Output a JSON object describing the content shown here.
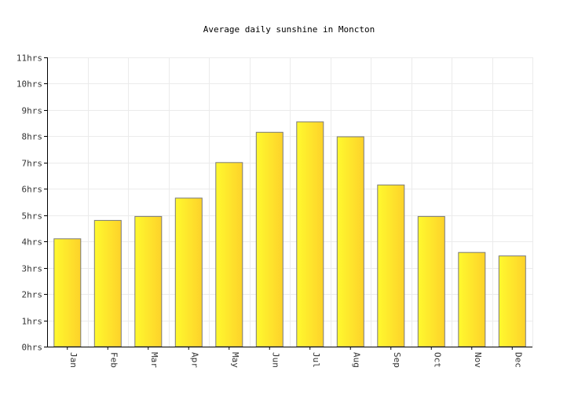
{
  "chart_data": {
    "type": "bar",
    "title": "Average daily sunshine in Moncton",
    "categories": [
      "Jan",
      "Feb",
      "Mar",
      "Apr",
      "May",
      "Jun",
      "Jul",
      "Aug",
      "Sep",
      "Oct",
      "Nov",
      "Dec"
    ],
    "values": [
      4.1,
      4.8,
      4.95,
      5.65,
      7.0,
      8.15,
      8.55,
      7.98,
      6.15,
      4.95,
      3.58,
      3.45
    ],
    "ylim": [
      0,
      11
    ],
    "yticks": [
      "0hrs",
      "1hrs",
      "2hrs",
      "3hrs",
      "4hrs",
      "5hrs",
      "6hrs",
      "7hrs",
      "8hrs",
      "9hrs",
      "10hrs",
      "11hrs"
    ],
    "grid": true,
    "legend": false,
    "colors": {
      "bar_start": "#fff92e",
      "bar_end": "#fdd22a",
      "bar_border": "#7a7a7a",
      "grid": "#ebebeb",
      "axis": "#000000"
    }
  }
}
